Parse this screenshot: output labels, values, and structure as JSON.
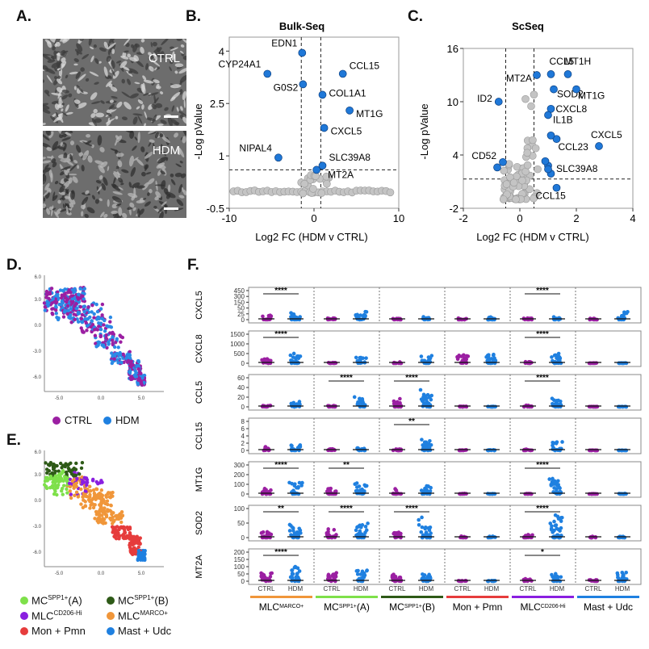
{
  "panels": {
    "A": "A.",
    "B": "B.",
    "C": "C.",
    "D": "D.",
    "E": "E.",
    "F": "F."
  },
  "panelA": {
    "top_label": "CTRL",
    "bottom_label": "HDM"
  },
  "panelB": {
    "title": "Bulk-Seq",
    "xlabel": "Log2 FC (HDM v CTRL)",
    "ylabel": "-Log pValue",
    "xticks": [
      "-10",
      "0",
      "10"
    ],
    "yticks": [
      "4",
      "2.5",
      "1",
      "-0.5"
    ],
    "genes": [
      {
        "name": "EDN1",
        "x": -1.4,
        "y": 3.95
      },
      {
        "name": "CYP24A1",
        "x": -5.5,
        "y": 3.35
      },
      {
        "name": "G0S2",
        "x": -1.3,
        "y": 3.05
      },
      {
        "name": "CCL15",
        "x": 3.4,
        "y": 3.35
      },
      {
        "name": "COL1A1",
        "x": 1.0,
        "y": 2.75
      },
      {
        "name": "MT1G",
        "x": 4.2,
        "y": 2.3
      },
      {
        "name": "CXCL5",
        "x": 1.2,
        "y": 1.8
      },
      {
        "name": "NIPAL4",
        "x": -4.2,
        "y": 0.95
      },
      {
        "name": "SLC39A8",
        "x": 1.0,
        "y": 0.72
      },
      {
        "name": "MT2A",
        "x": 0.3,
        "y": 0.6
      }
    ]
  },
  "panelC": {
    "title": "ScSeq",
    "xlabel": "Log2 FC (HDM v CTRL)",
    "ylabel": "-Log pValue",
    "xticks": [
      "-2",
      "0",
      "2",
      "4"
    ],
    "yticks": [
      "16",
      "10",
      "4",
      "-2"
    ],
    "genes": [
      {
        "name": "CCL5",
        "x": 1.1,
        "y": 13.1
      },
      {
        "name": "MT1H",
        "x": 1.7,
        "y": 13.1
      },
      {
        "name": "MT2A",
        "x": 0.6,
        "y": 13.0
      },
      {
        "name": "SOD2",
        "x": 1.2,
        "y": 11.4
      },
      {
        "name": "MT1G",
        "x": 2.0,
        "y": 11.4
      },
      {
        "name": "ID2",
        "x": -0.75,
        "y": 10.0
      },
      {
        "name": "CXCL8",
        "x": 1.1,
        "y": 9.2
      },
      {
        "name": "IL1B",
        "x": 1.0,
        "y": 8.5
      },
      {
        "name": "CXCL5",
        "x": 2.8,
        "y": 5.0
      },
      {
        "name": "CCL23",
        "x": 1.3,
        "y": 5.8
      },
      {
        "name": "CD52",
        "x": -0.6,
        "y": 3.2
      },
      {
        "name": "SLC39A8",
        "x": 1.0,
        "y": 2.8
      },
      {
        "name": "CCL15",
        "x": 1.3,
        "y": 0.3
      }
    ]
  },
  "panelD": {
    "legend": [
      {
        "label": "CTRL",
        "color": "#9b1fa2"
      },
      {
        "label": "HDM",
        "color": "#1f80e0"
      }
    ],
    "ticks": [
      "6.0",
      "3.0",
      "0.0",
      "-3.0",
      "-6.0",
      "-5.0",
      "0.0",
      "5.0"
    ]
  },
  "panelE": {
    "legend": [
      {
        "base": "MC",
        "sup": "SPP1+",
        "tail": "(A)",
        "color": "#7ee04a"
      },
      {
        "base": "MC",
        "sup": "SPP1+",
        "tail": "(B)",
        "color": "#2e5a17"
      },
      {
        "base": "MLC",
        "sup": "CD206-Hi",
        "tail": "",
        "color": "#8a1fe0"
      },
      {
        "base": "MLC",
        "sup": "MARCO+",
        "tail": "",
        "color": "#f0963a"
      },
      {
        "base": "Mon + Pmn",
        "sup": "",
        "tail": "",
        "color": "#e63c3c"
      },
      {
        "base": "Mast + Udc",
        "sup": "",
        "tail": "",
        "color": "#1f80e0"
      }
    ]
  },
  "panelF": {
    "genes": [
      {
        "name": "CXCL5",
        "yticks": [
          "450",
          "300",
          "150",
          "50",
          "25",
          "0"
        ],
        "sig": [
          {
            "col": 0,
            "text": "****"
          },
          {
            "col": 4,
            "text": "****"
          }
        ]
      },
      {
        "name": "CXCL8",
        "yticks": [
          "1500",
          "1000",
          "500",
          "0"
        ],
        "sig": [
          {
            "col": 0,
            "text": "****"
          },
          {
            "col": 4,
            "text": "****"
          }
        ]
      },
      {
        "name": "CCL5",
        "yticks": [
          "60",
          "40",
          "20",
          "0"
        ],
        "sig": [
          {
            "col": 1,
            "text": "****"
          },
          {
            "col": 2,
            "text": "****"
          },
          {
            "col": 4,
            "text": "****"
          }
        ]
      },
      {
        "name": "CCL15",
        "yticks": [
          "8",
          "6",
          "4",
          "2",
          "0"
        ],
        "sig": [
          {
            "col": 2,
            "text": "**"
          }
        ]
      },
      {
        "name": "MT1G",
        "yticks": [
          "300",
          "200",
          "100",
          "0"
        ],
        "sig": [
          {
            "col": 0,
            "text": "****"
          },
          {
            "col": 1,
            "text": "**"
          },
          {
            "col": 4,
            "text": "****"
          }
        ]
      },
      {
        "name": "SOD2",
        "yticks": [
          "100",
          "50",
          "0"
        ],
        "sig": [
          {
            "col": 0,
            "text": "**"
          },
          {
            "col": 1,
            "text": "****"
          },
          {
            "col": 2,
            "text": "****"
          },
          {
            "col": 4,
            "text": "****"
          }
        ]
      },
      {
        "name": "MT2A",
        "yticks": [
          "200",
          "150",
          "100",
          "50",
          "0"
        ],
        "sig": [
          {
            "col": 0,
            "text": "****"
          },
          {
            "col": 4,
            "text": "*"
          }
        ]
      }
    ],
    "xlabels": [
      "CTRL",
      "HDM"
    ],
    "groups": [
      {
        "base": "MLC",
        "sup": "MARCO+",
        "color": "#f0963a"
      },
      {
        "base": "MC",
        "sup": "SPP1+",
        "tail": "(A)",
        "color": "#7ee04a"
      },
      {
        "base": "MC",
        "sup": "SPP1+",
        "tail": "(B)",
        "color": "#2e5a17"
      },
      {
        "base": "Mon + Pmn",
        "sup": "",
        "color": "#e63c3c"
      },
      {
        "base": "MLC",
        "sup": "CD206-Hi",
        "color": "#8a1fe0"
      },
      {
        "base": "Mast + Udc",
        "sup": "",
        "color": "#1f80e0"
      }
    ],
    "colors": {
      "ctrl": "#9b1fa2",
      "hdm": "#1f80e0"
    }
  }
}
